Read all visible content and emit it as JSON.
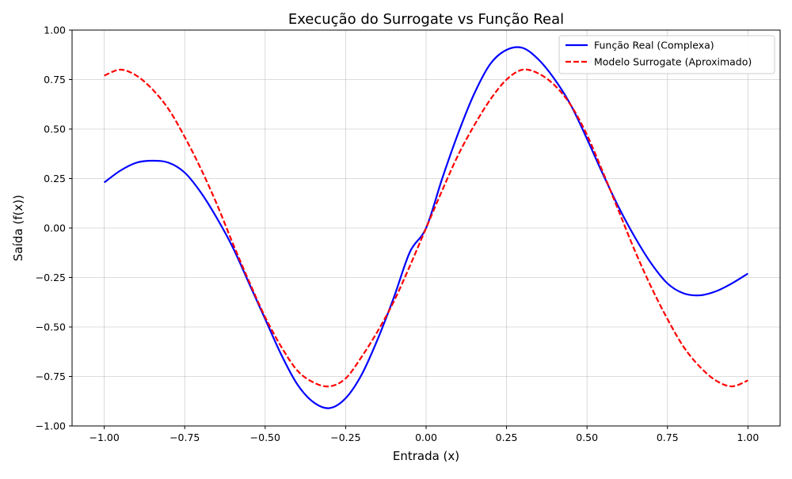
{
  "chart_data": {
    "type": "line",
    "title": "Execução do Surrogate vs Função Real",
    "xlabel": "Entrada (x)",
    "ylabel": "Saída (f(x))",
    "xlim": [
      -1.1,
      1.1
    ],
    "ylim": [
      -1.0,
      1.0
    ],
    "xticks": [
      -1.0,
      -0.75,
      -0.5,
      -0.25,
      0.0,
      0.25,
      0.5,
      0.75,
      1.0
    ],
    "xtick_labels": [
      "−1.00",
      "−0.75",
      "−0.50",
      "−0.25",
      "0.00",
      "0.25",
      "0.50",
      "0.75",
      "1.00"
    ],
    "yticks": [
      -1.0,
      -0.75,
      -0.5,
      -0.25,
      0.0,
      0.25,
      0.5,
      0.75,
      1.0
    ],
    "ytick_labels": [
      "−1.00",
      "−0.75",
      "−0.50",
      "−0.25",
      "0.00",
      "0.25",
      "0.50",
      "0.75",
      "1.00"
    ],
    "grid": true,
    "legend_position": "top-right",
    "series": [
      {
        "name": "Função Real (Complexa)",
        "color": "#0000ff",
        "style": "solid",
        "x": [
          -1.0,
          -0.95,
          -0.9,
          -0.85,
          -0.8,
          -0.75,
          -0.7,
          -0.65,
          -0.6,
          -0.55,
          -0.5,
          -0.45,
          -0.4,
          -0.35,
          -0.3,
          -0.25,
          -0.2,
          -0.15,
          -0.1,
          -0.05,
          0.0,
          0.05,
          0.1,
          0.15,
          0.2,
          0.25,
          0.3,
          0.35,
          0.4,
          0.45,
          0.5,
          0.55,
          0.6,
          0.65,
          0.7,
          0.75,
          0.8,
          0.85,
          0.9,
          0.95,
          1.0
        ],
        "y": [
          0.23,
          0.29,
          0.33,
          0.34,
          0.33,
          0.28,
          0.18,
          0.05,
          -0.1,
          -0.28,
          -0.46,
          -0.64,
          -0.79,
          -0.88,
          -0.91,
          -0.86,
          -0.74,
          -0.56,
          -0.35,
          -0.12,
          0.0,
          0.25,
          0.48,
          0.68,
          0.83,
          0.9,
          0.91,
          0.85,
          0.75,
          0.62,
          0.45,
          0.27,
          0.1,
          -0.05,
          -0.18,
          -0.28,
          -0.33,
          -0.34,
          -0.32,
          -0.28,
          -0.23
        ]
      },
      {
        "name": "Modelo Surrogate (Aproximado)",
        "color": "#ff0000",
        "style": "dashed",
        "x": [
          -1.0,
          -0.95,
          -0.9,
          -0.85,
          -0.8,
          -0.75,
          -0.7,
          -0.65,
          -0.6,
          -0.55,
          -0.5,
          -0.45,
          -0.4,
          -0.35,
          -0.3,
          -0.25,
          -0.2,
          -0.15,
          -0.1,
          -0.05,
          0.0,
          0.05,
          0.1,
          0.15,
          0.2,
          0.25,
          0.3,
          0.35,
          0.4,
          0.45,
          0.5,
          0.55,
          0.6,
          0.65,
          0.7,
          0.75,
          0.8,
          0.85,
          0.9,
          0.95,
          1.0
        ],
        "y": [
          0.77,
          0.8,
          0.77,
          0.7,
          0.6,
          0.46,
          0.3,
          0.12,
          -0.08,
          -0.27,
          -0.45,
          -0.6,
          -0.72,
          -0.78,
          -0.8,
          -0.76,
          -0.65,
          -0.52,
          -0.37,
          -0.19,
          0.0,
          0.19,
          0.37,
          0.52,
          0.65,
          0.75,
          0.8,
          0.78,
          0.72,
          0.62,
          0.47,
          0.28,
          0.08,
          -0.12,
          -0.3,
          -0.46,
          -0.6,
          -0.7,
          -0.77,
          -0.8,
          -0.77
        ]
      }
    ]
  }
}
